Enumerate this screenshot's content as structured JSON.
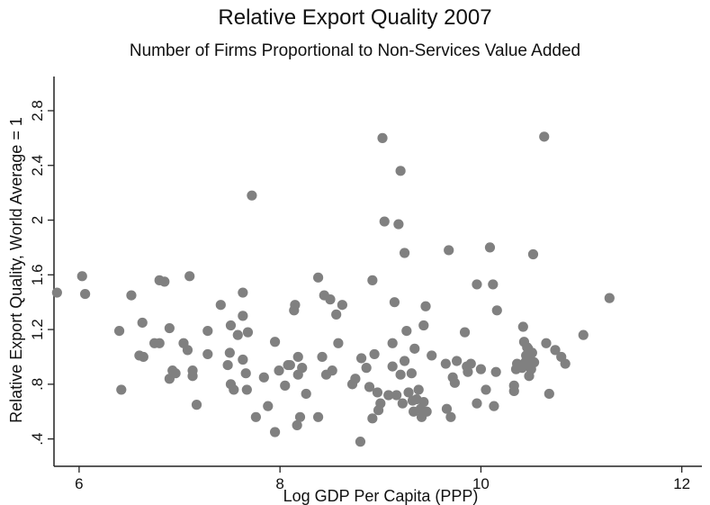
{
  "chart_data": {
    "type": "scatter",
    "title": "Relative Export Quality 2007",
    "subtitle": "Number of Firms Proportional to Non-Services Value Added",
    "xlabel": "Log GDP Per Capita (PPP)",
    "ylabel": "Relative Export Quality, World Average = 1",
    "xlim": [
      5.75,
      12.2
    ],
    "ylim": [
      0.2,
      3.05
    ],
    "xticks": [
      6,
      8,
      10,
      12
    ],
    "xtick_labels": [
      "6",
      "8",
      "10",
      "12"
    ],
    "yticks": [
      0.4,
      0.8,
      1.2,
      1.6,
      2.0,
      2.4,
      2.8
    ],
    "ytick_labels": [
      ".4",
      ".8",
      "1.2",
      "1.6",
      "2",
      "2.4",
      "2.8"
    ],
    "grid": false,
    "marker_color": "#808080",
    "points": [
      [
        5.78,
        1.47
      ],
      [
        6.03,
        1.59
      ],
      [
        6.06,
        1.46
      ],
      [
        6.4,
        1.19
      ],
      [
        6.42,
        0.76
      ],
      [
        6.52,
        1.45
      ],
      [
        6.6,
        1.01
      ],
      [
        6.64,
        1.0
      ],
      [
        6.63,
        1.25
      ],
      [
        6.75,
        1.1
      ],
      [
        6.8,
        1.1
      ],
      [
        6.8,
        1.56
      ],
      [
        6.85,
        1.55
      ],
      [
        6.9,
        0.84
      ],
      [
        6.93,
        0.9
      ],
      [
        6.9,
        1.21
      ],
      [
        6.96,
        0.88
      ],
      [
        7.04,
        1.1
      ],
      [
        7.08,
        1.05
      ],
      [
        7.1,
        1.59
      ],
      [
        7.13,
        0.9
      ],
      [
        7.13,
        0.86
      ],
      [
        7.17,
        0.65
      ],
      [
        7.28,
        1.19
      ],
      [
        7.28,
        1.02
      ],
      [
        7.41,
        1.38
      ],
      [
        7.48,
        0.94
      ],
      [
        7.5,
        1.03
      ],
      [
        7.51,
        0.8
      ],
      [
        7.51,
        1.23
      ],
      [
        7.54,
        0.76
      ],
      [
        7.58,
        1.16
      ],
      [
        7.63,
        1.47
      ],
      [
        7.63,
        0.98
      ],
      [
        7.63,
        1.3
      ],
      [
        7.66,
        0.88
      ],
      [
        7.67,
        0.76
      ],
      [
        7.68,
        1.18
      ],
      [
        7.72,
        2.18
      ],
      [
        7.76,
        0.56
      ],
      [
        7.84,
        0.85
      ],
      [
        7.88,
        0.64
      ],
      [
        7.95,
        0.45
      ],
      [
        7.95,
        1.11
      ],
      [
        7.99,
        0.9
      ],
      [
        8.05,
        0.79
      ],
      [
        8.08,
        0.94
      ],
      [
        8.1,
        0.94
      ],
      [
        8.14,
        1.34
      ],
      [
        8.15,
        1.38
      ],
      [
        8.17,
        0.5
      ],
      [
        8.18,
        0.87
      ],
      [
        8.2,
        0.56
      ],
      [
        8.18,
        1.0
      ],
      [
        8.22,
        0.92
      ],
      [
        8.26,
        0.73
      ],
      [
        8.38,
        1.58
      ],
      [
        8.38,
        0.56
      ],
      [
        8.42,
        1.0
      ],
      [
        8.44,
        1.45
      ],
      [
        8.46,
        0.87
      ],
      [
        8.5,
        1.42
      ],
      [
        8.52,
        0.9
      ],
      [
        8.56,
        1.31
      ],
      [
        8.58,
        1.1
      ],
      [
        8.62,
        1.38
      ],
      [
        8.72,
        0.8
      ],
      [
        8.75,
        0.84
      ],
      [
        8.8,
        0.38
      ],
      [
        8.81,
        0.99
      ],
      [
        8.86,
        0.92
      ],
      [
        8.89,
        0.78
      ],
      [
        8.92,
        1.56
      ],
      [
        8.92,
        0.55
      ],
      [
        8.94,
        1.02
      ],
      [
        8.97,
        0.74
      ],
      [
        8.98,
        0.61
      ],
      [
        9.0,
        0.66
      ],
      [
        9.02,
        2.6
      ],
      [
        9.04,
        1.99
      ],
      [
        9.08,
        0.72
      ],
      [
        9.12,
        0.93
      ],
      [
        9.12,
        1.1
      ],
      [
        9.14,
        1.4
      ],
      [
        9.16,
        0.72
      ],
      [
        9.18,
        1.97
      ],
      [
        9.2,
        0.87
      ],
      [
        9.2,
        2.36
      ],
      [
        9.22,
        0.66
      ],
      [
        9.24,
        1.76
      ],
      [
        9.24,
        0.97
      ],
      [
        9.26,
        1.19
      ],
      [
        9.28,
        0.74
      ],
      [
        9.31,
        0.88
      ],
      [
        9.32,
        0.68
      ],
      [
        9.33,
        0.6
      ],
      [
        9.34,
        1.06
      ],
      [
        9.36,
        0.69
      ],
      [
        9.38,
        0.76
      ],
      [
        9.4,
        0.62
      ],
      [
        9.41,
        0.56
      ],
      [
        9.43,
        0.67
      ],
      [
        9.43,
        1.23
      ],
      [
        9.45,
        1.37
      ],
      [
        9.46,
        0.6
      ],
      [
        9.51,
        1.01
      ],
      [
        9.65,
        0.95
      ],
      [
        9.66,
        0.62
      ],
      [
        9.68,
        1.78
      ],
      [
        9.7,
        0.56
      ],
      [
        9.72,
        0.85
      ],
      [
        9.74,
        0.81
      ],
      [
        9.76,
        0.97
      ],
      [
        9.84,
        1.18
      ],
      [
        9.86,
        0.93
      ],
      [
        9.87,
        0.89
      ],
      [
        9.9,
        0.95
      ],
      [
        9.96,
        1.53
      ],
      [
        9.96,
        0.66
      ],
      [
        10.0,
        0.91
      ],
      [
        10.05,
        0.76
      ],
      [
        10.09,
        1.8
      ],
      [
        10.12,
        1.53
      ],
      [
        10.13,
        0.64
      ],
      [
        10.15,
        0.89
      ],
      [
        10.16,
        1.34
      ],
      [
        10.33,
        0.79
      ],
      [
        10.33,
        0.75
      ],
      [
        10.35,
        0.91
      ],
      [
        10.36,
        0.95
      ],
      [
        10.41,
        0.92
      ],
      [
        10.42,
        1.22
      ],
      [
        10.43,
        1.11
      ],
      [
        10.44,
        0.96
      ],
      [
        10.45,
        1.01
      ],
      [
        10.46,
        1.07
      ],
      [
        10.47,
        1.06
      ],
      [
        10.48,
        0.86
      ],
      [
        10.49,
        0.99
      ],
      [
        10.5,
        0.91
      ],
      [
        10.51,
        1.03
      ],
      [
        10.52,
        1.75
      ],
      [
        10.53,
        0.96
      ],
      [
        10.63,
        2.61
      ],
      [
        10.65,
        1.1
      ],
      [
        10.68,
        0.73
      ],
      [
        10.74,
        1.05
      ],
      [
        10.8,
        1.0
      ],
      [
        10.84,
        0.95
      ],
      [
        11.02,
        1.16
      ],
      [
        11.28,
        1.43
      ]
    ]
  }
}
